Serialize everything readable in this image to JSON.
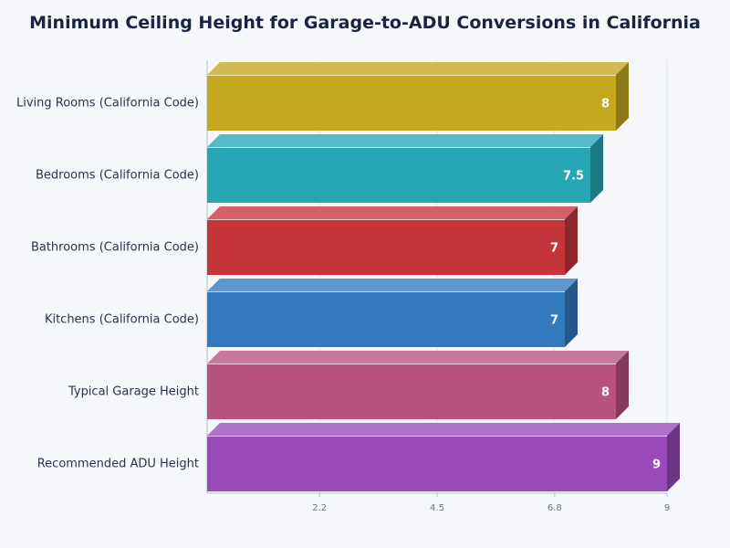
{
  "chart_data": {
    "type": "bar",
    "orientation": "horizontal",
    "title": "Minimum Ceiling Height for Garage-to-ADU Conversions in California",
    "categories": [
      "Living Rooms (California Code)",
      "Bedrooms (California Code)",
      "Bathrooms (California Code)",
      "Kitchens (California Code)",
      "Typical Garage Height",
      "Recommended ADU Height"
    ],
    "values": [
      8,
      7.5,
      7,
      7,
      8,
      9
    ],
    "value_labels": [
      "8",
      "7.5",
      "7",
      "7",
      "8",
      "9"
    ],
    "xlim": [
      0,
      9
    ],
    "xticks": [
      2.2,
      4.5,
      6.8,
      9
    ],
    "xtick_labels": [
      "2.2",
      "4.5",
      "6.8",
      "9"
    ],
    "grid": "vertical",
    "colors": [
      "#c4a81e",
      "#27a7b5",
      "#c5363c",
      "#3379c0",
      "#b8527f",
      "#9a49b9"
    ],
    "style": "3d"
  }
}
